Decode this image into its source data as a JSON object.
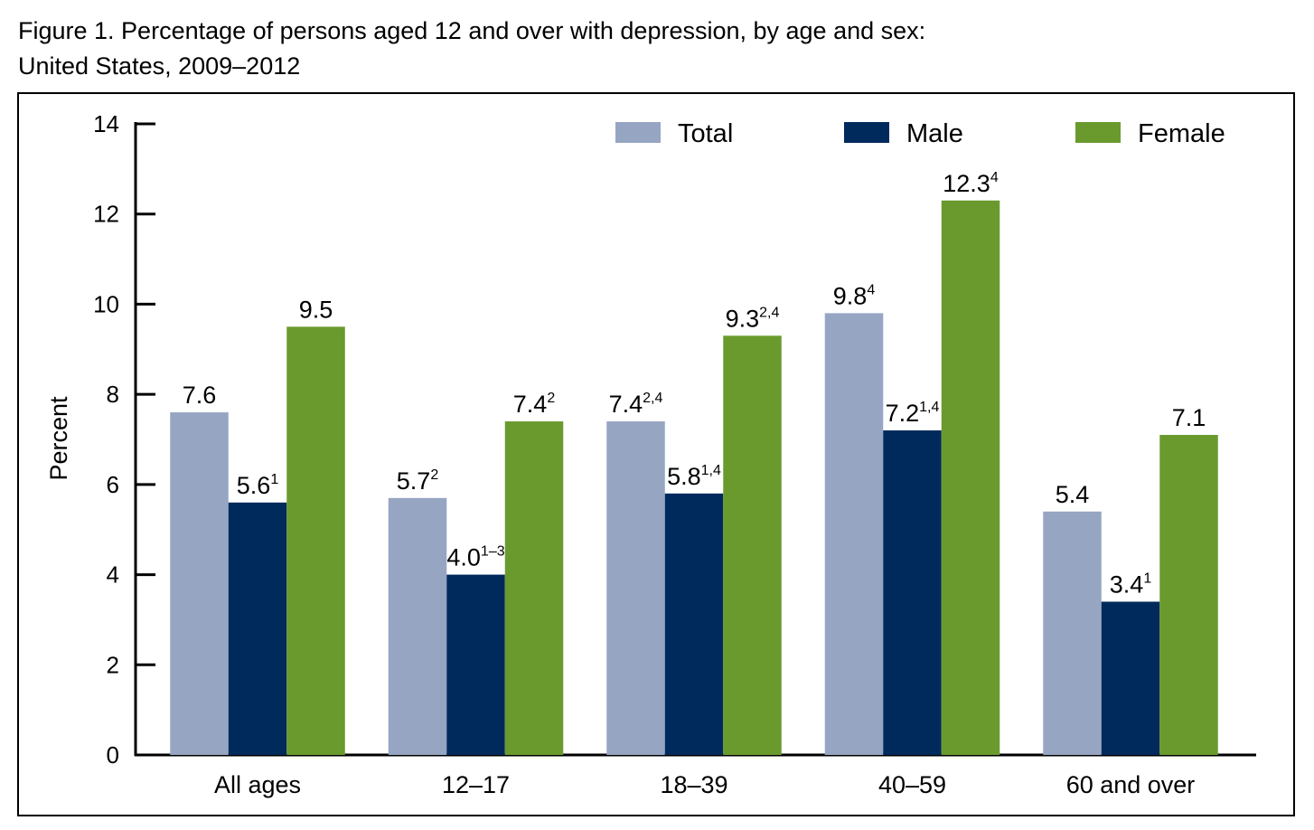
{
  "chart_data": {
    "type": "bar",
    "title": [
      "Figure 1. Percentage of persons aged 12 and over with depression, by age and sex:",
      "United States, 2009–2012"
    ],
    "y_label": "Percent",
    "categories": [
      "All ages",
      "12–17",
      "18–39",
      "40–59",
      "60 and over"
    ],
    "series": [
      {
        "name": "Total",
        "color": "#96a5c2",
        "values": [
          7.6,
          5.7,
          7.4,
          9.8,
          5.4
        ],
        "footnotes": [
          null,
          "2",
          "2,4",
          "4",
          null
        ]
      },
      {
        "name": "Male",
        "color": "#002a5c",
        "values": [
          5.6,
          4.0,
          5.8,
          7.2,
          3.4
        ],
        "value_labels": [
          "5.6",
          "4.0",
          "5.8",
          "7.2",
          "3.4"
        ],
        "footnotes": [
          "1",
          "1–3",
          "1,4",
          "1,4",
          "1"
        ]
      },
      {
        "name": "Female",
        "color": "#6a9a2e",
        "values": [
          9.5,
          7.4,
          9.3,
          12.3,
          7.1
        ],
        "footnotes": [
          null,
          "2",
          "2,4",
          "4",
          null
        ]
      }
    ],
    "ylim": [
      0,
      14
    ],
    "yticks": [
      0,
      2,
      4,
      6,
      8,
      10,
      12,
      14
    ],
    "grid": false,
    "legend": "top-right"
  }
}
